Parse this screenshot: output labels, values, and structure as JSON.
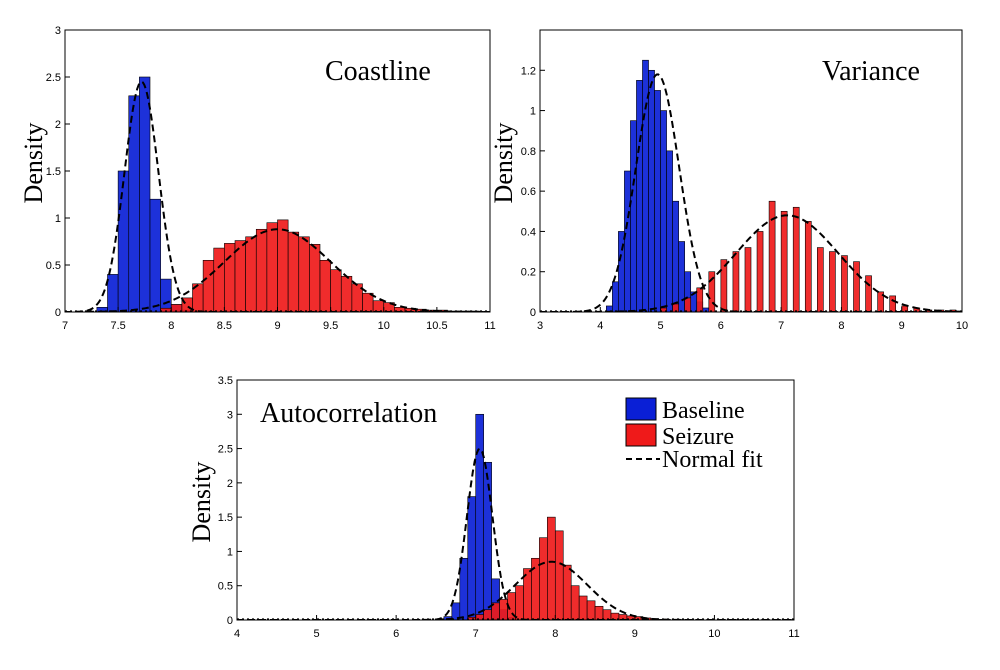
{
  "chart_data": [
    {
      "type": "bar",
      "title": "Coastline",
      "ylabel": "Density",
      "xlim": [
        7,
        11
      ],
      "ylim": [
        0,
        3
      ],
      "xticks": [
        "7",
        "7.5",
        "8",
        "8.5",
        "9",
        "9.5",
        "10",
        "10.5",
        "11"
      ],
      "yticks": [
        "0",
        "0.5",
        "1",
        "1.5",
        "2",
        "2.5",
        "3"
      ],
      "bin_width": 0.1,
      "series": [
        {
          "name": "Baseline",
          "color": "#0a1fd6",
          "bin_starts": [
            7.3,
            7.4,
            7.5,
            7.6,
            7.7,
            7.8,
            7.9,
            8.0,
            8.1
          ],
          "values": [
            0.05,
            0.4,
            1.5,
            2.3,
            2.5,
            1.2,
            0.35,
            0.08,
            0.02
          ]
        },
        {
          "name": "Seizure",
          "color": "#ef1a1a",
          "bin_starts": [
            7.9,
            8.0,
            8.1,
            8.2,
            8.3,
            8.4,
            8.5,
            8.6,
            8.7,
            8.8,
            8.9,
            9.0,
            9.1,
            9.2,
            9.3,
            9.4,
            9.5,
            9.6,
            9.7,
            9.8,
            9.9,
            10.0,
            10.1,
            10.2,
            10.3,
            10.4,
            10.5,
            10.6,
            10.7,
            10.8
          ],
          "values": [
            0.04,
            0.08,
            0.15,
            0.3,
            0.55,
            0.68,
            0.73,
            0.76,
            0.8,
            0.88,
            0.95,
            0.98,
            0.85,
            0.8,
            0.72,
            0.55,
            0.45,
            0.38,
            0.3,
            0.2,
            0.12,
            0.1,
            0.05,
            0.04,
            0.03,
            0.02,
            0.02,
            0.01,
            0.01,
            0.01
          ]
        }
      ],
      "fits": [
        {
          "name": "Baseline",
          "mu": 7.72,
          "sigma": 0.16,
          "peak": 2.45
        },
        {
          "name": "Seizure",
          "mu": 9.0,
          "sigma": 0.5,
          "peak": 0.88
        }
      ]
    },
    {
      "type": "bar",
      "title": "Variance",
      "ylabel": "Density",
      "xlim": [
        3,
        10
      ],
      "ylim": [
        0,
        1.4
      ],
      "xticks": [
        "3",
        "4",
        "5",
        "6",
        "7",
        "8",
        "9",
        "10"
      ],
      "yticks": [
        "0",
        "0.2",
        "0.4",
        "0.6",
        "0.8",
        "1",
        "1.2"
      ],
      "bin_width": 0.1,
      "series": [
        {
          "name": "Baseline",
          "color": "#0a1fd6",
          "bin_starts": [
            4.1,
            4.2,
            4.3,
            4.4,
            4.5,
            4.6,
            4.7,
            4.8,
            4.9,
            5.0,
            5.1,
            5.2,
            5.3,
            5.4,
            5.5,
            5.6,
            5.7
          ],
          "values": [
            0.03,
            0.15,
            0.4,
            0.7,
            0.95,
            1.15,
            1.25,
            1.2,
            1.1,
            1.0,
            0.8,
            0.55,
            0.35,
            0.2,
            0.1,
            0.05,
            0.02
          ]
        },
        {
          "name": "Seizure",
          "color": "#ef1a1a",
          "bin_starts": [
            5.0,
            5.2,
            5.4,
            5.6,
            5.8,
            6.0,
            6.2,
            6.4,
            6.6,
            6.8,
            7.0,
            7.2,
            7.4,
            7.6,
            7.8,
            8.0,
            8.2,
            8.4,
            8.6,
            8.8,
            9.0,
            9.2,
            9.4,
            9.6,
            9.8
          ],
          "values": [
            0.02,
            0.04,
            0.07,
            0.12,
            0.2,
            0.26,
            0.3,
            0.32,
            0.4,
            0.55,
            0.5,
            0.52,
            0.45,
            0.32,
            0.3,
            0.28,
            0.25,
            0.18,
            0.1,
            0.08,
            0.03,
            0.02,
            0.01,
            0.01,
            0.01
          ]
        }
      ],
      "fits": [
        {
          "name": "Baseline",
          "mu": 4.95,
          "sigma": 0.36,
          "peak": 1.18
        },
        {
          "name": "Seizure",
          "mu": 7.1,
          "sigma": 0.85,
          "peak": 0.48
        }
      ]
    },
    {
      "type": "bar",
      "title": "Autocorrelation",
      "ylabel": "Density",
      "xlim": [
        4,
        11
      ],
      "ylim": [
        0,
        3.5
      ],
      "xticks": [
        "4",
        "5",
        "6",
        "7",
        "8",
        "9",
        "10",
        "11"
      ],
      "yticks": [
        "0",
        "0.5",
        "1",
        "1.5",
        "2",
        "2.5",
        "3",
        "3.5"
      ],
      "bin_width": 0.1,
      "series": [
        {
          "name": "Baseline",
          "color": "#0a1fd6",
          "bin_starts": [
            6.6,
            6.7,
            6.8,
            6.9,
            7.0,
            7.1,
            7.2,
            7.3,
            7.4
          ],
          "values": [
            0.05,
            0.25,
            0.9,
            1.8,
            3.0,
            2.3,
            0.6,
            0.15,
            0.04
          ]
        },
        {
          "name": "Seizure",
          "color": "#ef1a1a",
          "bin_starts": [
            6.9,
            7.0,
            7.1,
            7.2,
            7.3,
            7.4,
            7.5,
            7.6,
            7.7,
            7.8,
            7.9,
            8.0,
            8.1,
            8.2,
            8.3,
            8.4,
            8.5,
            8.6,
            8.7,
            8.8,
            8.9,
            9.0,
            9.1,
            9.2,
            9.3
          ],
          "values": [
            0.04,
            0.08,
            0.15,
            0.25,
            0.3,
            0.4,
            0.5,
            0.75,
            0.9,
            1.2,
            1.5,
            1.3,
            0.8,
            0.5,
            0.35,
            0.28,
            0.2,
            0.15,
            0.1,
            0.08,
            0.06,
            0.05,
            0.03,
            0.02,
            0.01
          ]
        }
      ],
      "fits": [
        {
          "name": "Baseline",
          "mu": 7.05,
          "sigma": 0.16,
          "peak": 2.5
        },
        {
          "name": "Seizure",
          "mu": 7.95,
          "sigma": 0.45,
          "peak": 0.85
        }
      ],
      "legend": {
        "position": "top-right",
        "entries": [
          {
            "label": "Baseline",
            "color": "#0a1fd6",
            "kind": "patch"
          },
          {
            "label": "Seizure",
            "color": "#ef1a1a",
            "kind": "patch"
          },
          {
            "label": "Normal fit",
            "color": "#000000",
            "kind": "dashed-line"
          }
        ]
      }
    }
  ]
}
